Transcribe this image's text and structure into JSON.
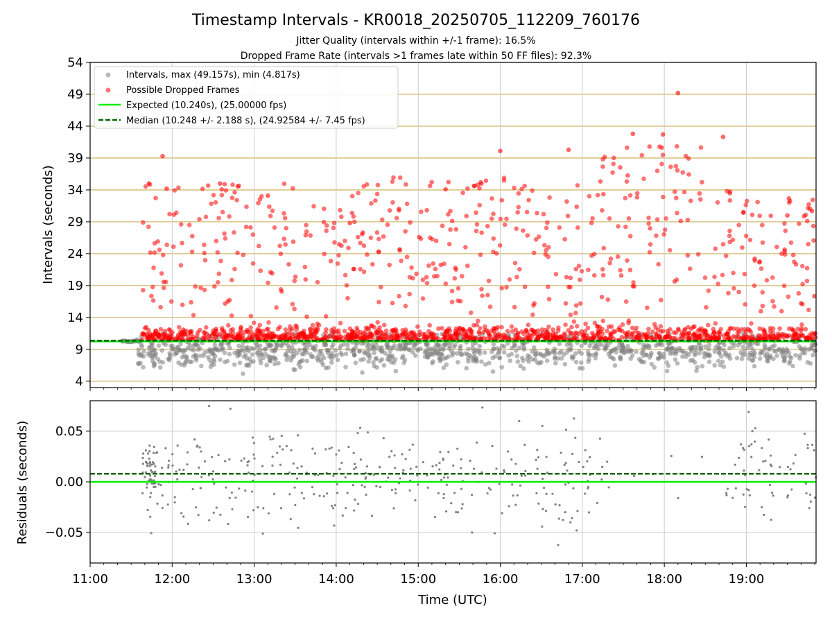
{
  "figure": {
    "title": "Timestamp Intervals - KR0018_20250705_112209_760176",
    "subtitle_1": "Jitter Quality (intervals within +/-1 frame): 16.5%",
    "subtitle_2": "Dropped Frame Rate (intervals >1 frames late within 50 FF files): 92.3%"
  },
  "colors": {
    "intervals": "#808080",
    "dropped": "#ff0000",
    "expected": "#00ee00",
    "median": "#006400",
    "hgrid_top": "#d4b96a",
    "grid": "#cccccc"
  },
  "chart_data": [
    {
      "type": "scatter",
      "ylabel": "Intervals (seconds)",
      "ylim": [
        3,
        54
      ],
      "yticks": [
        "4",
        "9",
        "14",
        "19",
        "24",
        "29",
        "34",
        "39",
        "44",
        "49",
        "54"
      ],
      "xlim": [
        "11:00",
        "19:51"
      ],
      "grid": true,
      "legend_position": "top-left",
      "legend": [
        "Intervals, max (49.157s), min (4.817s)",
        "Possible Dropped Frames",
        "Expected (10.240s), (25.00000 fps)",
        "Median (10.248 +/- 2.188 s), (24.92584 +/- 7.45 fps)"
      ],
      "series": [
        {
          "name": "Intervals, max (49.157s), min (4.817s)",
          "kind": "points",
          "y_range_typical": [
            4.817,
            11.5
          ],
          "x_range": [
            "11:23",
            "19:51"
          ]
        },
        {
          "name": "Possible Dropped Frames",
          "kind": "points",
          "y_range_typical": [
            10.3,
            49.157
          ],
          "x_range": [
            "11:38",
            "19:51"
          ],
          "sample_points": [
            [
              "11:53",
              39.3
            ],
            [
              "11:43",
              35.0
            ],
            [
              "11:56",
              34.2
            ],
            [
              "12:35",
              35.0
            ],
            [
              "13:10",
              33.1
            ],
            [
              "14:10",
              28.8
            ],
            [
              "15:20",
              34.1
            ],
            [
              "16:00",
              40.1
            ],
            [
              "16:50",
              40.3
            ],
            [
              "17:37",
              42.8
            ],
            [
              "17:59",
              42.7
            ],
            [
              "18:10",
              49.2
            ],
            [
              "18:43",
              42.3
            ],
            [
              "19:30",
              30.0
            ],
            [
              "19:48",
              30.7
            ]
          ]
        },
        {
          "name": "Expected (10.240s), (25.00000 fps)",
          "kind": "hline",
          "y": 10.24
        },
        {
          "name": "Median (10.248 +/- 2.188 s), (24.92584 +/- 7.45 fps)",
          "kind": "hline_dashed",
          "y": 10.248
        }
      ]
    },
    {
      "type": "scatter",
      "ylabel": "Residuals (seconds)",
      "xlabel": "Time (UTC)",
      "ylim": [
        -0.08,
        0.08
      ],
      "yticks": [
        "0.05",
        "0.00",
        "−0.05"
      ],
      "xticks": [
        "11:00",
        "12:00",
        "13:00",
        "14:00",
        "15:00",
        "16:00",
        "17:00",
        "18:00",
        "19:00"
      ],
      "xlim": [
        "11:00",
        "19:51"
      ],
      "grid": true,
      "series": [
        {
          "name": "residuals",
          "kind": "points",
          "y_range_typical": [
            -0.08,
            0.08
          ]
        },
        {
          "name": "zero",
          "kind": "hline",
          "y": 0.0
        },
        {
          "name": "median offset",
          "kind": "hline_dashed",
          "y": 0.008
        }
      ]
    }
  ]
}
